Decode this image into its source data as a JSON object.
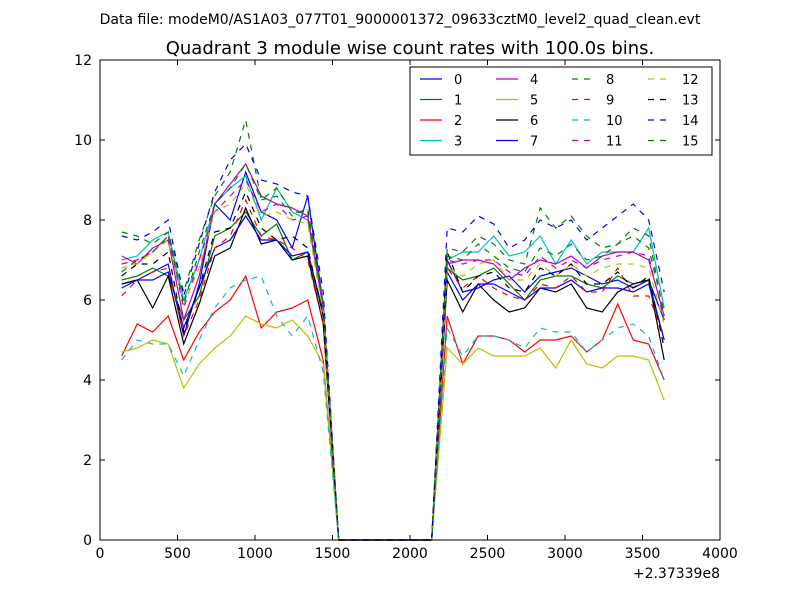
{
  "chart_data": {
    "type": "line",
    "suptitle": "Data file: modeM0/AS1A03_077T01_9000001372_09633cztM0_level2_quad_clean.evt",
    "title": "Quadrant 3 module wise count rates with 100.0s bins.",
    "xlabel": "",
    "ylabel": "",
    "x_offset_label": "+2.37339e8",
    "xlim": [
      0,
      4000
    ],
    "ylim": [
      0,
      12
    ],
    "xticks": [
      0,
      500,
      1000,
      1500,
      2000,
      2500,
      3000,
      3500,
      4000
    ],
    "yticks": [
      0,
      2,
      4,
      6,
      8,
      10,
      12
    ],
    "grid": false,
    "legend_position": "top-right",
    "legend_columns": 4,
    "x": [
      140,
      240,
      340,
      440,
      540,
      640,
      740,
      840,
      940,
      1040,
      1140,
      1240,
      1340,
      1440,
      1540,
      1640,
      1740,
      1840,
      1940,
      2040,
      2140,
      2240,
      2340,
      2440,
      2540,
      2640,
      2740,
      2840,
      2940,
      3040,
      3140,
      3240,
      3340,
      3440,
      3540,
      3640
    ],
    "series": [
      {
        "name": "0",
        "color": "#0000ff",
        "dash": false,
        "values": [
          6.4,
          6.5,
          6.7,
          6.9,
          5.1,
          6.4,
          8.4,
          8.0,
          9.2,
          8.2,
          8.0,
          7.3,
          8.6,
          5.9,
          0,
          0,
          0,
          0,
          0,
          0,
          0,
          7.0,
          6.2,
          6.3,
          6.5,
          6.6,
          6.2,
          6.6,
          6.7,
          6.8,
          6.6,
          6.4,
          6.5,
          6.3,
          6.5,
          5.5
        ]
      },
      {
        "name": "1",
        "color": "#008000",
        "dash": false,
        "values": [
          6.5,
          6.6,
          6.8,
          6.6,
          5.5,
          6.1,
          7.6,
          7.8,
          8.2,
          7.6,
          7.9,
          7.0,
          7.2,
          5.6,
          0,
          0,
          0,
          0,
          0,
          0,
          0,
          6.8,
          6.5,
          6.6,
          6.8,
          6.4,
          6.0,
          6.5,
          6.6,
          6.6,
          6.4,
          6.3,
          6.6,
          6.4,
          6.5,
          5.0
        ]
      },
      {
        "name": "2",
        "color": "#ff0000",
        "dash": false,
        "values": [
          4.6,
          5.4,
          5.2,
          5.6,
          4.5,
          5.2,
          5.7,
          6.0,
          6.6,
          5.3,
          5.7,
          5.8,
          6.0,
          4.5,
          0,
          0,
          0,
          0,
          0,
          0,
          0,
          5.6,
          4.4,
          5.1,
          5.1,
          5.0,
          4.7,
          5.0,
          5.0,
          5.1,
          4.7,
          5.0,
          5.9,
          5.0,
          4.9,
          4.0
        ]
      },
      {
        "name": "3",
        "color": "#00bfbf",
        "dash": false,
        "values": [
          7.0,
          7.1,
          7.5,
          7.7,
          6.0,
          7.0,
          8.4,
          8.8,
          9.1,
          8.0,
          8.8,
          8.2,
          8.0,
          5.9,
          0,
          0,
          0,
          0,
          0,
          0,
          0,
          7.0,
          7.2,
          7.2,
          7.6,
          7.1,
          7.2,
          7.6,
          6.9,
          7.5,
          6.9,
          7.2,
          7.2,
          7.2,
          7.8,
          5.8
        ]
      },
      {
        "name": "4",
        "color": "#bf00bf",
        "dash": false,
        "values": [
          7.1,
          6.9,
          7.3,
          7.5,
          5.5,
          6.6,
          8.4,
          8.9,
          9.4,
          8.6,
          8.4,
          8.3,
          8.1,
          5.8,
          0,
          0,
          0,
          0,
          0,
          0,
          0,
          6.9,
          7.0,
          7.0,
          6.9,
          6.5,
          6.8,
          7.0,
          6.9,
          7.1,
          6.8,
          7.1,
          7.2,
          7.2,
          7.0,
          5.6
        ]
      },
      {
        "name": "5",
        "color": "#bfbf00",
        "dash": false,
        "values": [
          4.7,
          4.8,
          5.0,
          4.9,
          3.8,
          4.4,
          4.8,
          5.1,
          5.6,
          5.4,
          5.3,
          5.5,
          5.1,
          4.4,
          0,
          0,
          0,
          0,
          0,
          0,
          0,
          4.8,
          4.4,
          4.8,
          4.6,
          4.6,
          4.6,
          4.8,
          4.3,
          5.0,
          4.4,
          4.3,
          4.6,
          4.6,
          4.5,
          3.5
        ]
      },
      {
        "name": "6",
        "color": "#000000",
        "dash": false,
        "values": [
          6.4,
          6.5,
          5.8,
          6.6,
          4.9,
          5.9,
          7.1,
          7.3,
          8.3,
          7.4,
          7.5,
          7.0,
          7.1,
          5.4,
          0,
          0,
          0,
          0,
          0,
          0,
          0,
          6.5,
          5.7,
          6.4,
          6.0,
          5.7,
          5.8,
          6.3,
          6.2,
          6.4,
          5.8,
          5.7,
          6.2,
          6.4,
          6.5,
          4.5
        ]
      },
      {
        "name": "7",
        "color": "#0000ff",
        "dash": false,
        "values": [
          6.3,
          6.5,
          6.5,
          6.7,
          5.3,
          6.3,
          7.3,
          7.5,
          8.1,
          7.5,
          7.5,
          7.1,
          7.2,
          5.7,
          0,
          0,
          0,
          0,
          0,
          0,
          0,
          6.7,
          6.0,
          6.4,
          6.4,
          6.2,
          6.0,
          6.3,
          6.3,
          6.5,
          6.2,
          6.3,
          6.3,
          6.2,
          6.4,
          5.0
        ]
      },
      {
        "name": "8",
        "color": "#008000",
        "dash": true,
        "values": [
          7.7,
          7.6,
          7.4,
          7.7,
          6.2,
          7.5,
          8.6,
          9.2,
          10.5,
          8.5,
          8.8,
          8.2,
          8.2,
          5.9,
          0,
          0,
          0,
          0,
          0,
          0,
          0,
          7.3,
          7.2,
          7.6,
          7.4,
          7.0,
          6.9,
          8.3,
          7.8,
          8.1,
          7.6,
          7.3,
          7.4,
          7.8,
          7.6,
          5.6
        ]
      },
      {
        "name": "9",
        "color": "#ff0000",
        "dash": true,
        "values": [
          6.1,
          6.5,
          6.7,
          6.8,
          5.1,
          6.0,
          7.3,
          7.6,
          8.5,
          7.6,
          7.5,
          7.3,
          7.0,
          5.4,
          0,
          0,
          0,
          0,
          0,
          0,
          0,
          6.8,
          6.3,
          6.6,
          6.3,
          6.1,
          6.0,
          6.4,
          6.3,
          6.6,
          6.2,
          6.2,
          6.8,
          6.1,
          6.1,
          5.1
        ]
      },
      {
        "name": "10",
        "color": "#00bfbf",
        "dash": true,
        "values": [
          4.5,
          5.0,
          4.9,
          4.9,
          4.1,
          5.0,
          5.8,
          6.3,
          6.5,
          6.6,
          5.6,
          5.1,
          5.6,
          4.2,
          0,
          0,
          0,
          0,
          0,
          0,
          0,
          5.3,
          4.6,
          5.1,
          5.1,
          5.0,
          4.8,
          5.3,
          5.2,
          5.2,
          4.7,
          5.0,
          5.3,
          5.4,
          5.1,
          4.0
        ]
      },
      {
        "name": "11",
        "color": "#bf00bf",
        "dash": true,
        "values": [
          6.9,
          7.0,
          7.2,
          7.6,
          5.8,
          7.0,
          8.2,
          8.6,
          9.0,
          8.2,
          8.4,
          8.0,
          8.1,
          5.8,
          0,
          0,
          0,
          0,
          0,
          0,
          0,
          7.0,
          6.9,
          7.0,
          7.0,
          6.7,
          6.6,
          7.1,
          6.8,
          7.0,
          6.8,
          7.0,
          7.1,
          7.2,
          7.1,
          5.5
        ]
      },
      {
        "name": "12",
        "color": "#bfbf00",
        "dash": true,
        "values": [
          6.8,
          6.9,
          7.2,
          7.5,
          5.9,
          6.8,
          8.2,
          8.4,
          8.9,
          8.1,
          8.2,
          8.0,
          7.9,
          5.7,
          0,
          0,
          0,
          0,
          0,
          0,
          0,
          6.8,
          6.6,
          6.9,
          7.0,
          6.5,
          6.5,
          6.9,
          6.6,
          6.9,
          6.6,
          6.8,
          6.9,
          6.9,
          6.8,
          5.4
        ]
      },
      {
        "name": "13",
        "color": "#000000",
        "dash": true,
        "values": [
          6.6,
          6.9,
          6.9,
          7.2,
          5.2,
          6.3,
          7.7,
          7.8,
          8.7,
          7.8,
          7.5,
          7.6,
          7.3,
          5.6,
          0,
          0,
          0,
          0,
          0,
          0,
          0,
          7.2,
          6.2,
          6.6,
          6.7,
          6.3,
          6.2,
          6.8,
          6.6,
          6.9,
          6.4,
          6.4,
          6.7,
          6.3,
          6.6,
          4.8
        ]
      },
      {
        "name": "14",
        "color": "#0000ff",
        "dash": true,
        "values": [
          7.6,
          7.5,
          7.7,
          8.0,
          6.1,
          7.4,
          8.7,
          9.5,
          9.9,
          9.0,
          8.9,
          8.7,
          8.6,
          6.2,
          0,
          0,
          0,
          0,
          0,
          0,
          0,
          7.8,
          7.7,
          8.1,
          7.9,
          7.3,
          7.5,
          8.0,
          7.8,
          8.0,
          7.5,
          7.8,
          8.1,
          8.4,
          8.0,
          6.2
        ]
      },
      {
        "name": "15",
        "color": "#008000",
        "dash": true,
        "values": [
          6.7,
          7.0,
          7.2,
          7.6,
          5.9,
          7.2,
          8.4,
          8.8,
          9.4,
          8.5,
          8.6,
          8.1,
          8.3,
          5.9,
          0,
          0,
          0,
          0,
          0,
          0,
          0,
          7.1,
          7.0,
          7.4,
          7.1,
          6.8,
          6.7,
          7.3,
          7.1,
          7.4,
          7.0,
          7.1,
          7.4,
          7.6,
          7.3,
          5.7
        ]
      }
    ]
  }
}
